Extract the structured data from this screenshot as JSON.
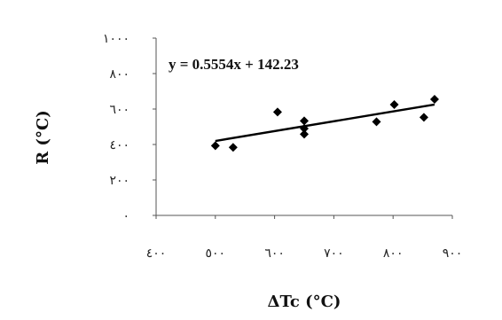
{
  "chart_data": {
    "type": "scatter",
    "title": "",
    "xlabel": "ΔTc (°C)",
    "ylabel": "R (°C)",
    "xlim": [
      400,
      900
    ],
    "ylim": [
      0,
      1000
    ],
    "x_ticks": [
      400,
      500,
      600,
      700,
      800,
      900
    ],
    "x_tick_labels": [
      "٤٠٠",
      "٥٠٠",
      "٦٠٠",
      "٧٠٠",
      "٨٠٠",
      "٩٠٠"
    ],
    "y_ticks": [
      0,
      200,
      400,
      600,
      800,
      1000
    ],
    "y_tick_labels": [
      "٠",
      "٢٠٠",
      "٤٠٠",
      "٦٠٠",
      "٨٠٠",
      "١٠٠٠"
    ],
    "grid": false,
    "legend": "none",
    "marker_color": "#000000",
    "line_color": "#000000",
    "series": [
      {
        "x": [
          500,
          530,
          605,
          650,
          650,
          650,
          772,
          802,
          852,
          870
        ],
        "y": [
          393,
          384,
          583,
          533,
          490,
          458,
          528,
          625,
          553,
          655
        ]
      }
    ],
    "trendline": {
      "equation": "y = 0.5554x + 142.23",
      "slope": 0.5554,
      "intercept": 142.23,
      "x_range": [
        500,
        870
      ]
    }
  }
}
